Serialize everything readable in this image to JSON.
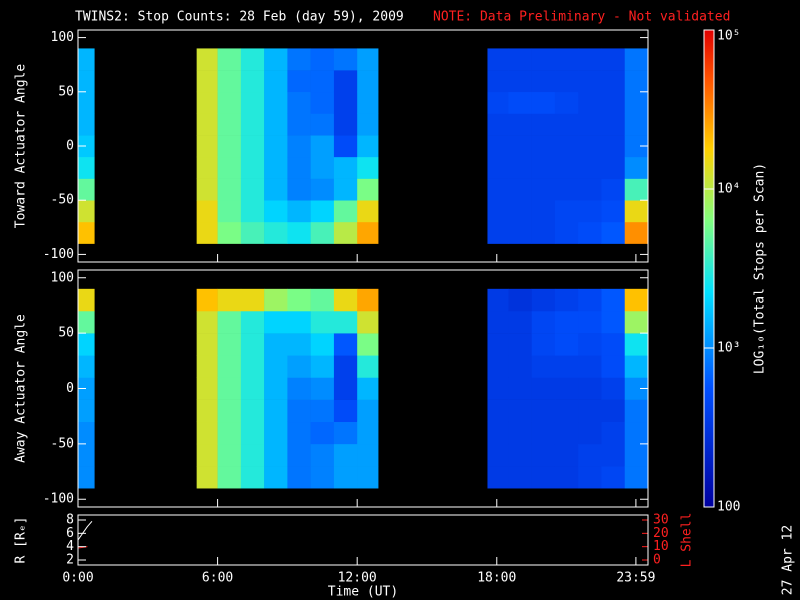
{
  "title": "TWINS2: Stop Counts: 28 Feb (day  59), 2009",
  "note": "NOTE: Data Preliminary - Not validated",
  "date_stamp": "27 Apr 12",
  "chart_data": [
    {
      "type": "heatmap",
      "ylabel": "Toward Actuator Angle",
      "xlim": [
        0,
        24.5
      ],
      "ylim": [
        -107,
        107
      ],
      "yticks": [
        -100,
        -50,
        0,
        50,
        100
      ],
      "x_bins": [
        0,
        0.7,
        5.1,
        6,
        7,
        8,
        9,
        10,
        11,
        12,
        12.9,
        17.6,
        18.5,
        19.5,
        20.5,
        21.5,
        22.5,
        23.5,
        24.5
      ],
      "y_bins": [
        -90,
        -70,
        -50,
        -30,
        -10,
        10,
        30,
        50,
        70,
        90
      ],
      "values": [
        [
          20000,
          12000,
          5000,
          2500,
          1800,
          1500,
          1500,
          1500,
          1500
        ],
        null,
        [
          15000,
          15000,
          12000,
          12000,
          12000,
          12000,
          12000,
          12000,
          12000
        ],
        [
          6000,
          5000,
          5000,
          5000,
          5000,
          5000,
          5000,
          5000,
          5000
        ],
        [
          4000,
          3000,
          3000,
          3000,
          3000,
          3000,
          3000,
          3000,
          3000
        ],
        [
          3000,
          2000,
          1500,
          1500,
          1500,
          1500,
          1500,
          1500,
          1500
        ],
        [
          2500,
          1500,
          900,
          900,
          900,
          800,
          800,
          700,
          800
        ],
        [
          4000,
          2000,
          1000,
          1200,
          1200,
          800,
          700,
          700,
          700
        ],
        [
          10000,
          5000,
          1500,
          1500,
          500,
          400,
          400,
          400,
          800
        ],
        [
          25000,
          15000,
          6000,
          2500,
          1500,
          1200,
          1200,
          1200,
          1200
        ],
        null,
        [
          400,
          400,
          400,
          400,
          400,
          400,
          450,
          400,
          400
        ],
        [
          400,
          400,
          400,
          400,
          400,
          400,
          500,
          400,
          400
        ],
        [
          400,
          400,
          400,
          400,
          400,
          400,
          500,
          400,
          400
        ],
        [
          450,
          450,
          400,
          400,
          400,
          400,
          450,
          400,
          400
        ],
        [
          500,
          450,
          400,
          400,
          400,
          400,
          400,
          400,
          400
        ],
        [
          600,
          500,
          450,
          400,
          400,
          400,
          400,
          400,
          400
        ],
        [
          30000,
          15000,
          4000,
          1000,
          800,
          800,
          800,
          800,
          800
        ]
      ],
      "colorbar": {
        "label": "LOG₁₀(Total Stops per Scan)",
        "lim": [
          100,
          100000
        ],
        "log": true,
        "ticks": [
          100,
          {
            "value": 1000,
            "label": "10³"
          },
          {
            "value": 10000,
            "label": "10⁴"
          },
          {
            "value": 100000,
            "label": "10⁵"
          }
        ]
      }
    },
    {
      "type": "heatmap",
      "ylabel": "Away Actuator Angle",
      "xlim": [
        0,
        24.5
      ],
      "ylim": [
        -107,
        107
      ],
      "yticks": [
        -100,
        -50,
        0,
        50,
        100
      ],
      "x_bins": [
        0,
        0.7,
        5.1,
        6,
        7,
        8,
        9,
        10,
        11,
        12,
        12.9,
        17.6,
        18.5,
        19.5,
        20.5,
        21.5,
        22.5,
        23.5,
        24.5
      ],
      "y_bins": [
        -90,
        -70,
        -50,
        -30,
        -10,
        10,
        30,
        50,
        70,
        90
      ],
      "values": [
        [
          1000,
          1000,
          1000,
          1200,
          1200,
          1500,
          2000,
          5000,
          15000
        ],
        null,
        [
          12000,
          12000,
          12000,
          12000,
          12000,
          12000,
          12000,
          12000,
          20000
        ],
        [
          5000,
          5000,
          5000,
          5000,
          5000,
          5000,
          5000,
          5000,
          15000
        ],
        [
          3000,
          3000,
          3000,
          3000,
          3000,
          3000,
          3000,
          3000,
          15000
        ],
        [
          1500,
          1500,
          1500,
          1500,
          1500,
          1500,
          1500,
          2000,
          8000
        ],
        [
          800,
          800,
          800,
          800,
          900,
          1200,
          1500,
          2000,
          6000
        ],
        [
          900,
          900,
          700,
          800,
          1000,
          1500,
          2000,
          3000,
          5000
        ],
        [
          1200,
          1200,
          800,
          500,
          400,
          400,
          600,
          3000,
          15000
        ],
        [
          1200,
          1200,
          1200,
          1200,
          1500,
          3000,
          6000,
          12000,
          25000
        ],
        null,
        [
          350,
          350,
          350,
          350,
          350,
          350,
          350,
          350,
          350
        ],
        [
          350,
          350,
          350,
          350,
          350,
          350,
          350,
          350,
          300
        ],
        [
          350,
          350,
          350,
          350,
          350,
          400,
          450,
          450,
          350
        ],
        [
          350,
          350,
          350,
          350,
          350,
          400,
          500,
          500,
          400
        ],
        [
          400,
          400,
          350,
          350,
          350,
          400,
          450,
          500,
          450
        ],
        [
          450,
          400,
          400,
          350,
          400,
          500,
          500,
          600,
          600
        ],
        [
          800,
          800,
          800,
          800,
          1000,
          1500,
          2500,
          8000,
          20000
        ]
      ]
    },
    {
      "type": "line",
      "xlabel": "Time (UT)",
      "ylabel": "R [Rₑ]",
      "y2label": "L Shell",
      "xlim": [
        0,
        24.5
      ],
      "ylim": [
        1.25,
        8.75
      ],
      "yticks": [
        2,
        4,
        6,
        8
      ],
      "y2lim": [
        -3.75,
        33.75
      ],
      "y2ticks": [
        0,
        10,
        20,
        30
      ],
      "xticks": [
        {
          "value": 0,
          "label": "0:00"
        },
        {
          "value": 6,
          "label": "6:00"
        },
        {
          "value": 12,
          "label": "12:00"
        },
        {
          "value": 18,
          "label": "18:00"
        },
        {
          "value": 23.98,
          "label": "23:59"
        }
      ],
      "series": [
        {
          "name": "R",
          "color": "#ffffff",
          "x": [
            0,
            0.2,
            0.4,
            0.6
          ],
          "values": [
            5,
            6,
            7,
            7.8
          ]
        },
        {
          "name": "L",
          "color": "#ff2020",
          "axis": "y2",
          "x": [
            0,
            0.2,
            0.4
          ],
          "values": [
            9,
            9.5,
            10
          ]
        }
      ]
    }
  ]
}
